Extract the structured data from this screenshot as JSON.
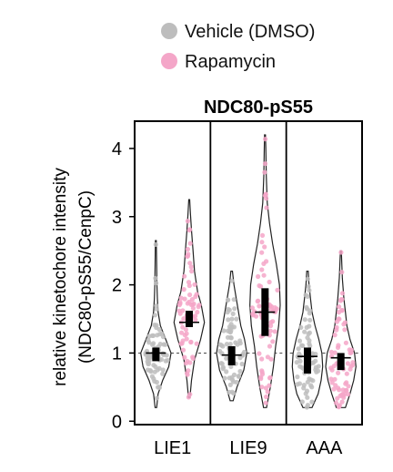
{
  "chart_data": {
    "type": "violin",
    "title": "NDC80-pS55",
    "ylabel_line1": "relative kinetochore intensity",
    "ylabel_line2": "(NDC80-pS55/CenpC)",
    "ylim": [
      -0.05,
      4.4
    ],
    "yticks": [
      0,
      1,
      2,
      3,
      4
    ],
    "reference_line": 1,
    "categories": [
      "LIE1",
      "LIE9",
      "AAA"
    ],
    "legend": {
      "placement": "top",
      "entries": [
        {
          "label": "Vehicle (DMSO)",
          "color": "#bdbdbd"
        },
        {
          "label": "Rapamycin",
          "color": "#f4a6c8"
        }
      ]
    },
    "groups": [
      {
        "category": "LIE1",
        "series": [
          {
            "name": "Vehicle (DMSO)",
            "color": "#bdbdbd",
            "min": 0.2,
            "max": 2.65,
            "median": 1.0,
            "q1": 0.88,
            "q3": 1.08,
            "density": [
              [
                0.2,
                0.05
              ],
              [
                0.4,
                0.15
              ],
              [
                0.6,
                0.45
              ],
              [
                0.8,
                0.85
              ],
              [
                1.0,
                1.0
              ],
              [
                1.2,
                0.65
              ],
              [
                1.4,
                0.3
              ],
              [
                1.6,
                0.15
              ],
              [
                1.8,
                0.1
              ],
              [
                2.0,
                0.07
              ],
              [
                2.3,
                0.05
              ],
              [
                2.65,
                0.03
              ]
            ]
          },
          {
            "name": "Rapamycin",
            "color": "#f4a6c8",
            "min": 0.35,
            "max": 3.25,
            "median": 1.45,
            "q1": 1.38,
            "q3": 1.62,
            "density": [
              [
                0.35,
                0.05
              ],
              [
                0.6,
                0.15
              ],
              [
                0.9,
                0.35
              ],
              [
                1.2,
                0.75
              ],
              [
                1.45,
                1.0
              ],
              [
                1.7,
                0.8
              ],
              [
                1.9,
                0.55
              ],
              [
                2.2,
                0.35
              ],
              [
                2.5,
                0.25
              ],
              [
                2.8,
                0.15
              ],
              [
                3.05,
                0.08
              ],
              [
                3.25,
                0.03
              ]
            ]
          }
        ]
      },
      {
        "category": "LIE9",
        "series": [
          {
            "name": "Vehicle (DMSO)",
            "color": "#bdbdbd",
            "min": 0.3,
            "max": 2.2,
            "median": 0.97,
            "q1": 0.82,
            "q3": 1.1,
            "density": [
              [
                0.3,
                0.1
              ],
              [
                0.5,
                0.35
              ],
              [
                0.75,
                0.8
              ],
              [
                1.0,
                1.0
              ],
              [
                1.2,
                0.85
              ],
              [
                1.4,
                0.6
              ],
              [
                1.6,
                0.45
              ],
              [
                1.8,
                0.3
              ],
              [
                2.0,
                0.15
              ],
              [
                2.2,
                0.05
              ]
            ]
          },
          {
            "name": "Rapamycin",
            "color": "#f4a6c8",
            "min": 0.2,
            "max": 4.2,
            "median": 1.6,
            "q1": 1.25,
            "q3": 1.95,
            "density": [
              [
                0.2,
                0.1
              ],
              [
                0.5,
                0.35
              ],
              [
                0.8,
                0.55
              ],
              [
                1.1,
                0.7
              ],
              [
                1.4,
                0.9
              ],
              [
                1.7,
                1.0
              ],
              [
                2.0,
                0.95
              ],
              [
                2.3,
                0.75
              ],
              [
                2.6,
                0.5
              ],
              [
                2.9,
                0.3
              ],
              [
                3.2,
                0.15
              ],
              [
                3.6,
                0.08
              ],
              [
                4.0,
                0.05
              ],
              [
                4.2,
                0.03
              ]
            ]
          }
        ]
      },
      {
        "category": "AAA",
        "series": [
          {
            "name": "Vehicle (DMSO)",
            "color": "#bdbdbd",
            "min": 0.2,
            "max": 2.2,
            "median": 0.95,
            "q1": 0.7,
            "q3": 1.08,
            "density": [
              [
                0.2,
                0.3
              ],
              [
                0.4,
                0.7
              ],
              [
                0.6,
                0.9
              ],
              [
                0.8,
                1.0
              ],
              [
                1.0,
                0.95
              ],
              [
                1.2,
                0.75
              ],
              [
                1.4,
                0.5
              ],
              [
                1.6,
                0.3
              ],
              [
                1.8,
                0.2
              ],
              [
                2.0,
                0.1
              ],
              [
                2.2,
                0.05
              ]
            ]
          },
          {
            "name": "Rapamycin",
            "color": "#f4a6c8",
            "min": 0.2,
            "max": 2.5,
            "median": 0.93,
            "q1": 0.75,
            "q3": 1.0,
            "density": [
              [
                0.2,
                0.3
              ],
              [
                0.4,
                0.6
              ],
              [
                0.6,
                0.85
              ],
              [
                0.8,
                1.0
              ],
              [
                1.0,
                0.9
              ],
              [
                1.2,
                0.6
              ],
              [
                1.4,
                0.4
              ],
              [
                1.6,
                0.3
              ],
              [
                1.8,
                0.2
              ],
              [
                2.1,
                0.1
              ],
              [
                2.5,
                0.03
              ]
            ]
          }
        ]
      }
    ]
  }
}
